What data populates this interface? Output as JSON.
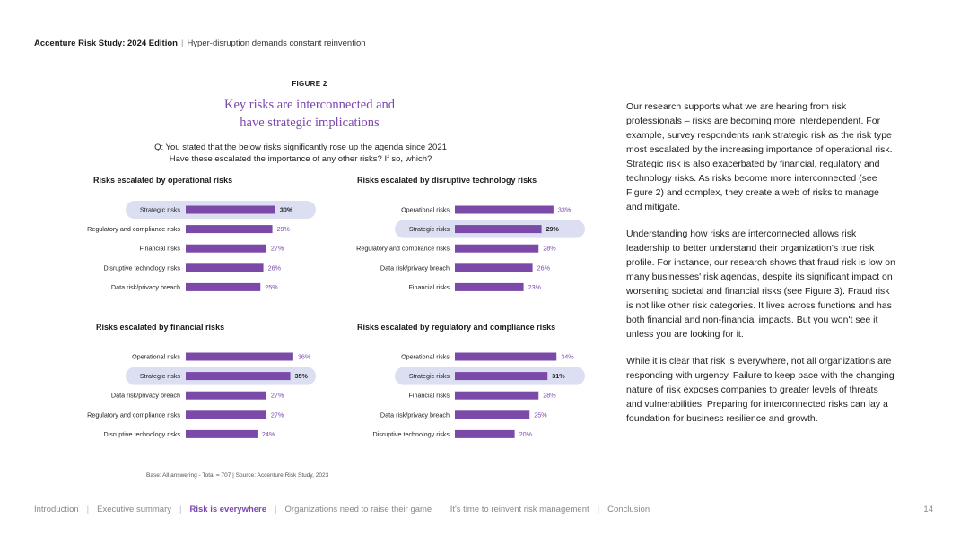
{
  "header": {
    "study": "Accenture Risk Study: 2024 Edition",
    "separator": "|",
    "subtitle": "Hyper-disruption demands constant reinvention"
  },
  "figure": {
    "label": "FIGURE 2",
    "title_line1": "Key risks are interconnected and",
    "title_line2": "have strategic implications",
    "question_line1": "Q: You stated that the below risks significantly rose up the agenda since 2021",
    "question_line2": "Have these escalated the importance of any other risks? If so, which?",
    "source": "Base: All answering - Total = 707 | Source: Accenture Risk Study, 2023"
  },
  "colors": {
    "bar": "#7b4aa8",
    "highlight": "#dcdff2",
    "accent": "#7b47ad"
  },
  "chart_data": [
    {
      "type": "bar",
      "orientation": "horizontal",
      "title": "Risks escalated by operational risks",
      "categories": [
        "Strategic risks",
        "Regulatory and compliance risks",
        "Financial risks",
        "Disruptive technology risks",
        "Data risk/privacy breach"
      ],
      "values": [
        30,
        29,
        27,
        26,
        25
      ],
      "highlight_index": 0
    },
    {
      "type": "bar",
      "orientation": "horizontal",
      "title": "Risks escalated by disruptive technology risks",
      "categories": [
        "Operational risks",
        "Strategic risks",
        "Regulatory and compliance risks",
        "Data risk/privacy breach",
        "Financial risks"
      ],
      "values": [
        33,
        29,
        28,
        26,
        23
      ],
      "highlight_index": 1
    },
    {
      "type": "bar",
      "orientation": "horizontal",
      "title": "Risks escalated by financial risks",
      "categories": [
        "Operational risks",
        "Strategic risks",
        "Data risk/privacy breach",
        "Regulatory and compliance risks",
        "Disruptive technology risks"
      ],
      "values": [
        36,
        35,
        27,
        27,
        24
      ],
      "highlight_index": 1
    },
    {
      "type": "bar",
      "orientation": "horizontal",
      "title": "Risks escalated by regulatory and compliance risks",
      "categories": [
        "Operational risks",
        "Strategic risks",
        "Financial risks",
        "Data risk/privacy breach",
        "Disruptive technology risks"
      ],
      "values": [
        34,
        31,
        28,
        25,
        20
      ],
      "highlight_index": 1
    }
  ],
  "body": {
    "p1": "Our research supports what we are hearing from risk professionals – risks are becoming more interdependent. For example, survey respondents rank strategic risk as the risk type most escalated by the increasing importance of operational risk. Strategic risk is also exacerbated by financial, regulatory and technology risks. As risks become more interconnected (see Figure 2) and complex, they create a web of risks to manage and mitigate.",
    "p2": "Understanding how risks are interconnected allows risk leadership to better understand their organization's true risk profile. For instance, our research shows that fraud risk is low on many businesses' risk agendas, despite its significant impact on worsening societal and financial risks (see Figure 3). Fraud risk is not like other risk categories. It lives across functions and has both financial and non-financial impacts. But you won't see it unless you are looking for it.",
    "p3": "While it is clear that risk is everywhere, not all organizations are responding with urgency. Failure to keep pace with the changing nature of risk exposes companies to greater levels of threats and vulnerabilities. Preparing for interconnected risks can lay a foundation for business resilience and growth."
  },
  "footer": {
    "nav": [
      "Introduction",
      "Executive summary",
      "Risk is everywhere",
      "Organizations need to raise their game",
      "It's time to reinvent risk management",
      "Conclusion"
    ],
    "active_index": 2,
    "separator": "|",
    "page_number": "14"
  }
}
